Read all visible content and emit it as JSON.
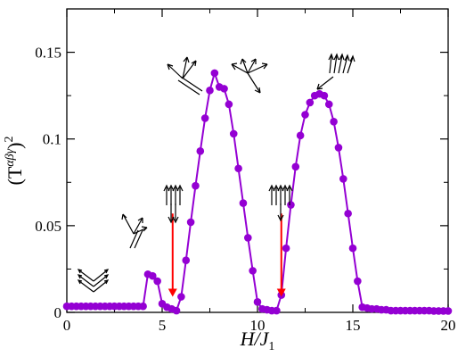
{
  "chart_data": {
    "type": "line",
    "xlabel": "H/J",
    "xlabel_subscript": "1",
    "ylabel": "(T",
    "ylabel_superscript": "αβγ",
    "ylabel_close": ")",
    "ylabel_power": "2",
    "xlim": [
      0,
      20
    ],
    "ylim": [
      0,
      0.175
    ],
    "x_ticks": [
      0,
      5,
      10,
      15,
      20
    ],
    "x_tick_labels": [
      "0",
      "5",
      "10",
      "15",
      "20"
    ],
    "y_ticks": [
      0,
      0.05,
      0.1,
      0.15
    ],
    "y_tick_labels": [
      "0",
      "0.05",
      "0.1",
      "0.15"
    ],
    "grid": false,
    "colors": {
      "series": "#9400d3",
      "arrow_annotation": "#ff0000",
      "spin_icon": "#000000"
    },
    "series": [
      {
        "x": [
          0.0,
          0.25,
          0.5,
          0.75,
          1.0,
          1.25,
          1.5,
          1.75,
          2.0,
          2.25,
          2.5,
          2.75,
          3.0,
          3.25,
          3.5,
          3.75,
          4.0,
          4.25,
          4.5,
          4.75,
          5.0,
          5.25,
          5.5,
          5.75,
          6.0,
          6.25,
          6.5,
          6.75,
          7.0,
          7.25,
          7.5,
          7.75,
          8.0,
          8.25,
          8.5,
          8.75,
          9.0,
          9.25,
          9.5,
          9.75,
          10.0,
          10.25,
          10.5,
          10.75,
          11.0,
          11.25,
          11.5,
          11.75,
          12.0,
          12.25,
          12.5,
          12.75,
          13.0,
          13.25,
          13.5,
          13.75,
          14.0,
          14.25,
          14.5,
          14.75,
          15.0,
          15.25,
          15.5,
          15.75,
          16.0,
          16.25,
          16.5,
          16.75,
          17.0,
          17.25,
          17.5,
          17.75,
          18.0,
          18.25,
          18.5,
          18.75,
          19.0,
          19.25,
          19.5,
          19.75,
          20.0
        ],
        "y": [
          0.0035,
          0.0035,
          0.0035,
          0.0035,
          0.0035,
          0.0035,
          0.0035,
          0.0035,
          0.0035,
          0.0035,
          0.0035,
          0.0035,
          0.0035,
          0.0035,
          0.0035,
          0.0035,
          0.0035,
          0.022,
          0.021,
          0.018,
          0.005,
          0.003,
          0.002,
          0.001,
          0.009,
          0.03,
          0.052,
          0.073,
          0.093,
          0.112,
          0.128,
          0.138,
          0.13,
          0.129,
          0.12,
          0.103,
          0.083,
          0.063,
          0.043,
          0.024,
          0.006,
          0.002,
          0.0015,
          0.001,
          0.001,
          0.01,
          0.037,
          0.062,
          0.084,
          0.102,
          0.114,
          0.121,
          0.125,
          0.126,
          0.125,
          0.12,
          0.11,
          0.095,
          0.077,
          0.057,
          0.037,
          0.018,
          0.003,
          0.0025,
          0.002,
          0.002,
          0.0015,
          0.0015,
          0.001,
          0.001,
          0.001,
          0.001,
          0.001,
          0.001,
          0.001,
          0.001,
          0.001,
          0.0008,
          0.0008,
          0.0008,
          0.0008
        ]
      }
    ],
    "annotations": {
      "red_arrows": [
        {
          "x": 5.55,
          "y_start": 0.057,
          "y_end": 0.009
        },
        {
          "x": 11.25,
          "y_start": 0.057,
          "y_end": 0.009
        }
      ]
    }
  }
}
